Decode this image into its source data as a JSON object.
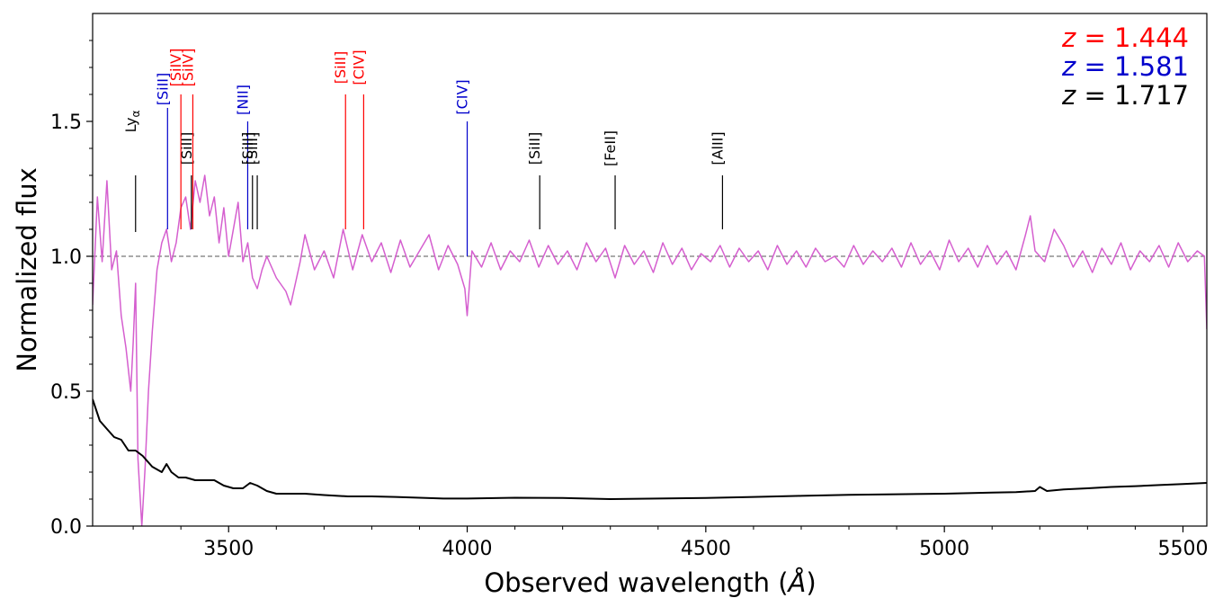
{
  "chart_data": {
    "type": "line",
    "xlabel_text": "Observed wavelength (",
    "xlabel_unit": "Å",
    "xlabel_close": ")",
    "ylabel": "Normalized flux",
    "xlim": [
      3215,
      5550
    ],
    "ylim": [
      0.0,
      1.9
    ],
    "x_ticks": [
      {
        "value": 3500,
        "label": "3500"
      },
      {
        "value": 4000,
        "label": "4000"
      },
      {
        "value": 4500,
        "label": "4500"
      },
      {
        "value": 5000,
        "label": "5000"
      },
      {
        "value": 5500,
        "label": "5500"
      }
    ],
    "y_ticks": [
      {
        "value": 0.0,
        "label": "0.0"
      },
      {
        "value": 0.5,
        "label": "0.5"
      },
      {
        "value": 1.0,
        "label": "1.0"
      },
      {
        "value": 1.5,
        "label": "1.5"
      }
    ],
    "reference_line": {
      "y": 1.0,
      "style": "dashed",
      "color": "#777777"
    },
    "series": [
      {
        "name": "flux",
        "color": "#d55fcf",
        "x": [
          3215,
          3225,
          3235,
          3245,
          3255,
          3265,
          3275,
          3285,
          3295,
          3300,
          3305,
          3310,
          3318,
          3325,
          3332,
          3340,
          3350,
          3360,
          3370,
          3380,
          3390,
          3400,
          3410,
          3420,
          3430,
          3440,
          3450,
          3460,
          3470,
          3480,
          3490,
          3500,
          3510,
          3520,
          3530,
          3540,
          3550,
          3560,
          3570,
          3580,
          3600,
          3620,
          3630,
          3650,
          3660,
          3680,
          3700,
          3720,
          3740,
          3760,
          3780,
          3800,
          3820,
          3840,
          3860,
          3880,
          3900,
          3920,
          3940,
          3960,
          3980,
          3995,
          4000,
          4010,
          4030,
          4050,
          4070,
          4090,
          4110,
          4130,
          4150,
          4170,
          4190,
          4210,
          4230,
          4250,
          4270,
          4290,
          4310,
          4330,
          4350,
          4370,
          4390,
          4410,
          4430,
          4450,
          4470,
          4490,
          4510,
          4530,
          4550,
          4570,
          4590,
          4610,
          4630,
          4650,
          4670,
          4690,
          4710,
          4730,
          4750,
          4770,
          4790,
          4810,
          4830,
          4850,
          4870,
          4890,
          4910,
          4930,
          4950,
          4970,
          4990,
          5010,
          5030,
          5050,
          5070,
          5090,
          5110,
          5130,
          5150,
          5170,
          5180,
          5190,
          5210,
          5230,
          5250,
          5270,
          5290,
          5310,
          5330,
          5350,
          5370,
          5390,
          5410,
          5430,
          5450,
          5470,
          5490,
          5510,
          5530,
          5545,
          5550
        ],
        "y": [
          0.82,
          1.22,
          0.98,
          1.28,
          0.95,
          1.02,
          0.78,
          0.66,
          0.5,
          0.68,
          0.9,
          0.25,
          0.0,
          0.22,
          0.5,
          0.72,
          0.95,
          1.05,
          1.1,
          0.98,
          1.05,
          1.18,
          1.22,
          1.1,
          1.28,
          1.2,
          1.3,
          1.15,
          1.22,
          1.05,
          1.18,
          1.0,
          1.1,
          1.2,
          0.98,
          1.05,
          0.92,
          0.88,
          0.95,
          1.0,
          0.92,
          0.87,
          0.82,
          0.98,
          1.08,
          0.95,
          1.02,
          0.92,
          1.1,
          0.95,
          1.08,
          0.98,
          1.05,
          0.94,
          1.06,
          0.96,
          1.02,
          1.08,
          0.95,
          1.04,
          0.97,
          0.88,
          0.78,
          1.02,
          0.96,
          1.05,
          0.95,
          1.02,
          0.98,
          1.06,
          0.96,
          1.04,
          0.97,
          1.02,
          0.95,
          1.05,
          0.98,
          1.03,
          0.92,
          1.04,
          0.97,
          1.02,
          0.94,
          1.05,
          0.97,
          1.03,
          0.95,
          1.01,
          0.98,
          1.04,
          0.96,
          1.03,
          0.98,
          1.02,
          0.95,
          1.04,
          0.97,
          1.02,
          0.96,
          1.03,
          0.98,
          1.0,
          0.96,
          1.04,
          0.97,
          1.02,
          0.98,
          1.03,
          0.96,
          1.05,
          0.97,
          1.02,
          0.95,
          1.06,
          0.98,
          1.03,
          0.96,
          1.04,
          0.97,
          1.02,
          0.95,
          1.08,
          1.15,
          1.02,
          0.98,
          1.1,
          1.04,
          0.96,
          1.02,
          0.94,
          1.03,
          0.97,
          1.05,
          0.95,
          1.02,
          0.98,
          1.04,
          0.96,
          1.05,
          0.98,
          1.02,
          1.0,
          0.73
        ]
      },
      {
        "name": "error",
        "color": "#000000",
        "x": [
          3215,
          3230,
          3245,
          3260,
          3275,
          3290,
          3305,
          3320,
          3340,
          3360,
          3370,
          3380,
          3395,
          3410,
          3430,
          3450,
          3470,
          3490,
          3510,
          3530,
          3545,
          3560,
          3580,
          3600,
          3630,
          3660,
          3700,
          3750,
          3800,
          3850,
          3900,
          3950,
          4000,
          4100,
          4200,
          4300,
          4400,
          4500,
          4600,
          4700,
          4800,
          4900,
          5000,
          5100,
          5150,
          5190,
          5200,
          5215,
          5250,
          5300,
          5350,
          5400,
          5450,
          5500,
          5550
        ],
        "y": [
          0.47,
          0.39,
          0.36,
          0.33,
          0.32,
          0.28,
          0.28,
          0.26,
          0.22,
          0.2,
          0.23,
          0.2,
          0.18,
          0.18,
          0.17,
          0.17,
          0.17,
          0.15,
          0.14,
          0.14,
          0.16,
          0.15,
          0.13,
          0.12,
          0.12,
          0.12,
          0.115,
          0.11,
          0.11,
          0.108,
          0.105,
          0.102,
          0.102,
          0.105,
          0.104,
          0.1,
          0.102,
          0.104,
          0.108,
          0.112,
          0.116,
          0.118,
          0.12,
          0.124,
          0.126,
          0.13,
          0.145,
          0.13,
          0.136,
          0.14,
          0.145,
          0.148,
          0.152,
          0.156,
          0.16
        ]
      }
    ],
    "line_markers": [
      {
        "label": "Lyα",
        "label_main": "Ly",
        "label_sub": "α",
        "x": 3305,
        "y0": 1.09,
        "y1": 1.3,
        "color": "#000000",
        "label_y": 1.48
      },
      {
        "label": "[SiII]",
        "x": 3372,
        "y0": 1.1,
        "y1": 1.55,
        "color": "#0000cc",
        "label_y": 1.6
      },
      {
        "label": "[SiII]",
        "x": 3422,
        "y0": 1.1,
        "y1": 1.3,
        "color": "#000000",
        "label_y": 1.38
      },
      {
        "label": "[SiIV]",
        "x": 3400,
        "y0": 1.1,
        "y1": 1.6,
        "color": "#ff0000",
        "label_y": 1.68
      },
      {
        "label": "[SiIV]",
        "x": 3425,
        "y0": 1.1,
        "y1": 1.6,
        "color": "#ff0000",
        "label_y": 1.68
      },
      {
        "label": "[NII]",
        "x": 3540,
        "y0": 1.1,
        "y1": 1.5,
        "color": "#0000cc",
        "label_y": 1.56
      },
      {
        "label": "[SiII]",
        "x": 3550,
        "y0": 1.1,
        "y1": 1.3,
        "color": "#000000",
        "label_y": 1.38
      },
      {
        "label": "[SiII]",
        "x": 3560,
        "y0": 1.1,
        "y1": 1.3,
        "color": "#000000",
        "label_y": 1.38
      },
      {
        "label": "[SiII]",
        "x": 3745,
        "y0": 1.1,
        "y1": 1.6,
        "color": "#ff0000",
        "label_y": 1.68
      },
      {
        "label": "[CIV]",
        "x": 3783,
        "y0": 1.1,
        "y1": 1.6,
        "color": "#ff0000",
        "label_y": 1.68
      },
      {
        "label": "[CIV]",
        "x": 4000,
        "y0": 1.0,
        "y1": 1.5,
        "color": "#0000cc",
        "label_y": 1.57
      },
      {
        "label": "[SiII]",
        "x": 4152,
        "y0": 1.1,
        "y1": 1.3,
        "color": "#000000",
        "label_y": 1.38
      },
      {
        "label": "[FeII]",
        "x": 4310,
        "y0": 1.1,
        "y1": 1.3,
        "color": "#000000",
        "label_y": 1.38
      },
      {
        "label": "[AlII]",
        "x": 4535,
        "y0": 1.1,
        "y1": 1.3,
        "color": "#000000",
        "label_y": 1.38
      }
    ],
    "legend": {
      "position": "top-right",
      "entries": [
        {
          "var": "z",
          "eq": " = ",
          "value": "1.444",
          "color": "#ff0000"
        },
        {
          "var": "z",
          "eq": " = ",
          "value": "1.581",
          "color": "#0000cc"
        },
        {
          "var": "z",
          "eq": " = ",
          "value": "1.717",
          "color": "#000000"
        }
      ]
    }
  }
}
